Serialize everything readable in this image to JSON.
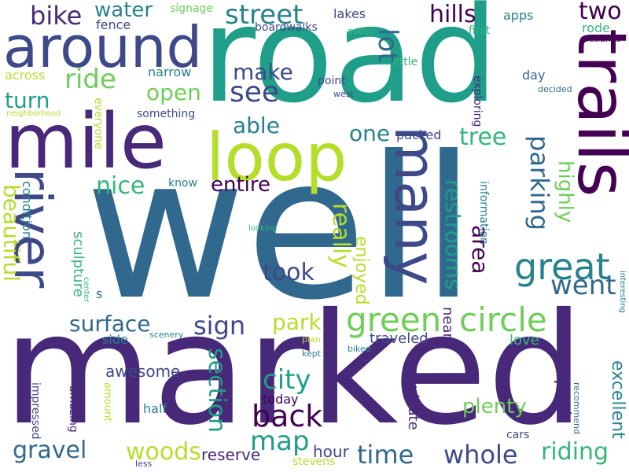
{
  "palette": {
    "dark_purple": "#440154",
    "indigo": "#482878",
    "slate": "#3e4989",
    "steel": "#31688e",
    "teal_blue": "#26828e",
    "teal": "#1f9e89",
    "green": "#35b779",
    "lime": "#6ece58",
    "yellow_green": "#b5de2b"
  },
  "words": [
    {
      "text": "well",
      "color": "#31688e"
    },
    {
      "text": "marked",
      "color": "#482878"
    },
    {
      "text": "road",
      "color": "#1f9e89"
    },
    {
      "text": "mile",
      "color": "#482878"
    },
    {
      "text": "around",
      "color": "#3e4989"
    },
    {
      "text": "loop",
      "color": "#b5de2b"
    },
    {
      "text": "trails",
      "color": "#440154"
    },
    {
      "text": "many",
      "color": "#3e4989"
    },
    {
      "text": "river",
      "color": "#3e4989"
    },
    {
      "text": "great",
      "color": "#26828e"
    },
    {
      "text": "green",
      "color": "#6ece58"
    },
    {
      "text": "circle",
      "color": "#6ece58"
    },
    {
      "text": "street",
      "color": "#26828e"
    },
    {
      "text": "bike",
      "color": "#482878"
    },
    {
      "text": "water",
      "color": "#26828e"
    },
    {
      "text": "ride",
      "color": "#6ece58"
    },
    {
      "text": "see",
      "color": "#3e4989"
    },
    {
      "text": "make",
      "color": "#3e4989"
    },
    {
      "text": "hills",
      "color": "#440154"
    },
    {
      "text": "two",
      "color": "#440154"
    },
    {
      "text": "lot",
      "color": "#31688e"
    },
    {
      "text": "open",
      "color": "#6ece58"
    },
    {
      "text": "turn",
      "color": "#1f9e89"
    },
    {
      "text": "able",
      "color": "#26828e"
    },
    {
      "text": "one",
      "color": "#26828e"
    },
    {
      "text": "tree",
      "color": "#35b779"
    },
    {
      "text": "nice",
      "color": "#35b779"
    },
    {
      "text": "entire",
      "color": "#440154"
    },
    {
      "text": "parking",
      "color": "#31688e"
    },
    {
      "text": "highly",
      "color": "#6ece58"
    },
    {
      "text": "really",
      "color": "#b5de2b"
    },
    {
      "text": "restrooms",
      "color": "#1f9e89"
    },
    {
      "text": "area",
      "color": "#440154"
    },
    {
      "text": "went",
      "color": "#31688e"
    },
    {
      "text": "took",
      "color": "#3e4989"
    },
    {
      "text": "beautiful",
      "color": "#b5de2b"
    },
    {
      "text": "surface",
      "color": "#31688e"
    },
    {
      "text": "sign",
      "color": "#3e4989"
    },
    {
      "text": "park",
      "color": "#b5de2b"
    },
    {
      "text": "city",
      "color": "#1f9e89"
    },
    {
      "text": "back",
      "color": "#440154"
    },
    {
      "text": "section",
      "color": "#1f9e89"
    },
    {
      "text": "map",
      "color": "#1f9e89"
    },
    {
      "text": "gravel",
      "color": "#31688e"
    },
    {
      "text": "woods",
      "color": "#b5de2b"
    },
    {
      "text": "time",
      "color": "#31688e"
    },
    {
      "text": "whole",
      "color": "#3e4989"
    },
    {
      "text": "riding",
      "color": "#35b779"
    },
    {
      "text": "plenty",
      "color": "#6ece58"
    },
    {
      "text": "part",
      "color": "#482878"
    },
    {
      "text": "excellent",
      "color": "#26828e"
    },
    {
      "text": "hour",
      "color": "#3e4989"
    },
    {
      "text": "reserve",
      "color": "#482878"
    },
    {
      "text": "enjoyed",
      "color": "#b5de2b"
    },
    {
      "text": "navigate",
      "color": "#482878"
    },
    {
      "text": "near",
      "color": "#482878"
    },
    {
      "text": "traveled",
      "color": "#3e4989"
    },
    {
      "text": "love",
      "color": "#35b779"
    },
    {
      "text": "awesome",
      "color": "#3e4989"
    },
    {
      "text": "today",
      "color": "#440154"
    },
    {
      "text": "half",
      "color": "#26828e"
    },
    {
      "text": "side",
      "color": "#26828e"
    },
    {
      "text": "condition",
      "color": "#26828e"
    },
    {
      "text": "sculpture",
      "color": "#35b779"
    },
    {
      "text": "across",
      "color": "#b5de2b"
    },
    {
      "text": "fence",
      "color": "#3e4989"
    },
    {
      "text": "signage",
      "color": "#6ece58"
    },
    {
      "text": "lakes",
      "color": "#3e4989"
    },
    {
      "text": "boardwalks",
      "color": "#3e4989"
    },
    {
      "text": "apps",
      "color": "#26828e"
    },
    {
      "text": "first",
      "color": "#35b779"
    },
    {
      "text": "added",
      "color": "#35b779"
    },
    {
      "text": "rode",
      "color": "#35b779"
    },
    {
      "text": "wetlands",
      "color": "#440154"
    },
    {
      "text": "little",
      "color": "#35b779"
    },
    {
      "text": "day",
      "color": "#31688e"
    },
    {
      "text": "narrow",
      "color": "#26828e"
    },
    {
      "text": "point",
      "color": "#3e4989"
    },
    {
      "text": "west",
      "color": "#3e4989"
    },
    {
      "text": "decided",
      "color": "#31688e"
    },
    {
      "text": "exploring",
      "color": "#482878"
    },
    {
      "text": "something",
      "color": "#3e4989"
    },
    {
      "text": "neighborhood",
      "color": "#b5de2b"
    },
    {
      "text": "everyone",
      "color": "#b5de2b"
    },
    {
      "text": "packed",
      "color": "#3e4989"
    },
    {
      "text": "know",
      "color": "#26828e"
    },
    {
      "text": "information",
      "color": "#26828e"
    },
    {
      "text": "looking",
      "color": "#35b779"
    },
    {
      "text": "s",
      "color": "#31688e"
    },
    {
      "text": "center",
      "color": "#35b779"
    },
    {
      "text": "interesting",
      "color": "#26828e"
    },
    {
      "text": "scenery",
      "color": "#26828e"
    },
    {
      "text": "plan",
      "color": "#b5de2b"
    },
    {
      "text": "kept",
      "color": "#26828e"
    },
    {
      "text": "biked",
      "color": "#26828e"
    },
    {
      "text": "recommend",
      "color": "#31688e"
    },
    {
      "text": "impressed",
      "color": "#3e4989"
    },
    {
      "text": "amazing",
      "color": "#482878"
    },
    {
      "text": "amount",
      "color": "#b5de2b"
    },
    {
      "text": "cars",
      "color": "#3e4989"
    },
    {
      "text": "less",
      "color": "#3e4989"
    },
    {
      "text": "stevens",
      "color": "#b5de2b"
    }
  ]
}
